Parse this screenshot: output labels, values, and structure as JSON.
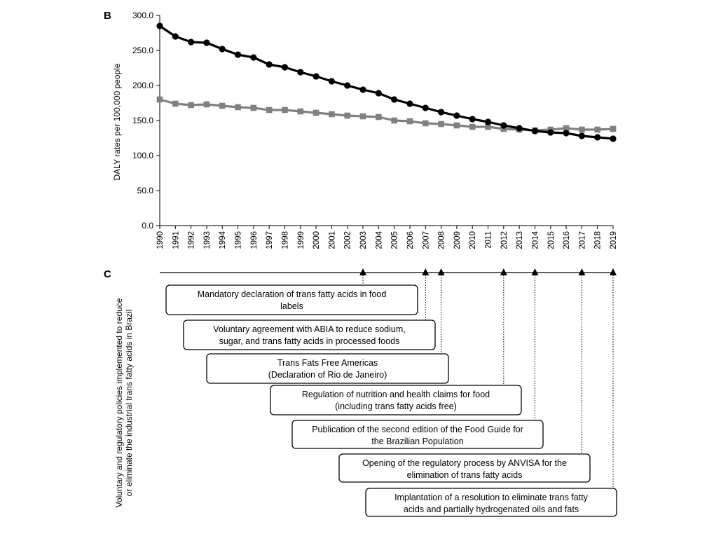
{
  "chart_data": {
    "type": "line",
    "panel_b_label": "B",
    "panel_c_label": "C",
    "ylabel": "DALY rates per 100,000 people",
    "xlabel": "",
    "ylim": [
      0,
      300
    ],
    "yticks": [
      "0.0",
      "50.0",
      "100.0",
      "150.0",
      "200.0",
      "250.0",
      "300.0"
    ],
    "ytick_values": [
      0,
      50,
      100,
      150,
      200,
      250,
      300
    ],
    "x": [
      "1990",
      "1991",
      "1992",
      "1993",
      "1994",
      "1995",
      "1996",
      "1997",
      "1998",
      "1999",
      "2000",
      "2001",
      "2002",
      "2003",
      "2004",
      "2005",
      "2006",
      "2007",
      "2008",
      "2009",
      "2010",
      "2011",
      "2012",
      "2013",
      "2014",
      "2015",
      "2016",
      "2017",
      "2018",
      "2019"
    ],
    "grid": false,
    "legend": "none",
    "series": [
      {
        "color": "#000000",
        "marker": "circle",
        "values": [
          285,
          270,
          262,
          261,
          252,
          244,
          240,
          230,
          226,
          219,
          213,
          206,
          200,
          194,
          189,
          180,
          174,
          168,
          162,
          157,
          152,
          148,
          143,
          139,
          135,
          133,
          132,
          128,
          126,
          124
        ]
      },
      {
        "color": "#808080",
        "marker": "square",
        "values": [
          180,
          174,
          172,
          173,
          171,
          169,
          168,
          165,
          165,
          163,
          161,
          159,
          157,
          156,
          155,
          150,
          149,
          146,
          145,
          143,
          141,
          141,
          138,
          137,
          136,
          137,
          139,
          137,
          137,
          138
        ]
      }
    ]
  },
  "timeline": {
    "ylabel_line1": "Voluntary and regulatory policies implemented to reduce",
    "ylabel_line2": "or eliminate the industrial trans fatty acids in Brazil",
    "events": [
      {
        "year": 2003,
        "lines": [
          "Mandatory declaration of trans fatty acids in food",
          "labels"
        ]
      },
      {
        "year": 2007,
        "lines": [
          "Voluntary agreement with ABIA to reduce sodium,",
          "sugar, and trans fatty acids in processed foods"
        ]
      },
      {
        "year": 2008,
        "lines": [
          "Trans Fats Free Americas",
          "(Declaration of Rio de Janeiro)"
        ]
      },
      {
        "year": 2012,
        "lines": [
          "Regulation of nutrition and health claims for food",
          "(including trans fatty acids free)"
        ]
      },
      {
        "year": 2014,
        "lines": [
          "Publication of the second edition of the Food Guide for",
          "the Brazilian Population"
        ]
      },
      {
        "year": 2017,
        "lines": [
          "Opening of the regulatory process by ANVISA for the",
          "elimination of trans fatty acids"
        ]
      },
      {
        "year": 2019,
        "lines": [
          "Implantation of a resolution to eliminate trans fatty",
          "acids and partially hydrogenated oils and fats"
        ]
      }
    ]
  }
}
